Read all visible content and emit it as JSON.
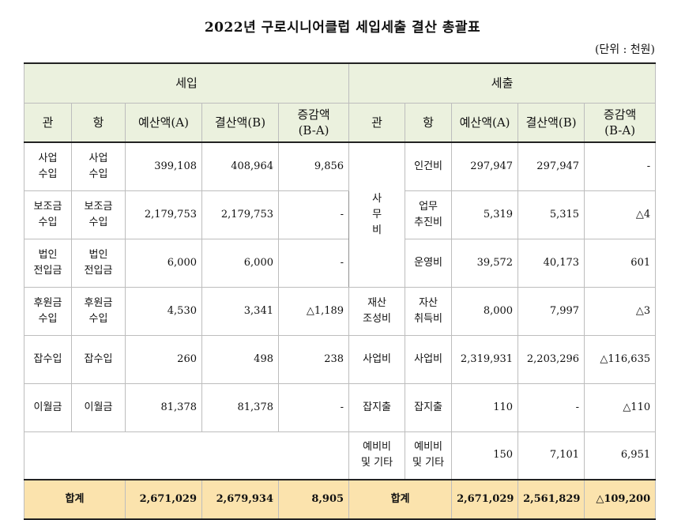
{
  "title": "2022년 구로시니어클럽 세입세출 결산 총괄표",
  "unit": "(단위 : 천원)",
  "header": {
    "income": "세입",
    "expense": "세출",
    "cols": {
      "gwan": "관",
      "hang": "항",
      "budget": "예산액(A)",
      "settled": "결산액(B)",
      "diff_l1": "증감액",
      "diff_l2": "(B-A)"
    }
  },
  "income_rows": [
    {
      "gwan": [
        "사업",
        "수입"
      ],
      "hang": [
        "사업",
        "수입"
      ],
      "budget": "399,108",
      "settled": "408,964",
      "diff": "9,856"
    },
    {
      "gwan": [
        "보조금",
        "수입"
      ],
      "hang": [
        "보조금",
        "수입"
      ],
      "budget": "2,179,753",
      "settled": "2,179,753",
      "diff": "-"
    },
    {
      "gwan": [
        "법인",
        "전입금"
      ],
      "hang": [
        "법인",
        "전입금"
      ],
      "budget": "6,000",
      "settled": "6,000",
      "diff": "-"
    },
    {
      "gwan": [
        "후원금",
        "수입"
      ],
      "hang": [
        "후원금",
        "수입"
      ],
      "budget": "4,530",
      "settled": "3,341",
      "diff": "△1,189"
    },
    {
      "gwan": [
        "잡수입"
      ],
      "hang": [
        "잡수입"
      ],
      "budget": "260",
      "settled": "498",
      "diff": "238"
    },
    {
      "gwan": [
        "이월금"
      ],
      "hang": [
        "이월금"
      ],
      "budget": "81,378",
      "settled": "81,378",
      "diff": "-"
    }
  ],
  "expense_rows": [
    {
      "gwan": [
        "사",
        "무",
        "비"
      ],
      "hang": [
        "인건비"
      ],
      "budget": "297,947",
      "settled": "297,947",
      "diff": "-"
    },
    {
      "hang": [
        "업무",
        "추진비"
      ],
      "budget": "5,319",
      "settled": "5,315",
      "diff": "△4"
    },
    {
      "hang": [
        "운영비"
      ],
      "budget": "39,572",
      "settled": "40,173",
      "diff": "601"
    },
    {
      "gwan": [
        "재산",
        "조성비"
      ],
      "hang": [
        "자산",
        "취득비"
      ],
      "budget": "8,000",
      "settled": "7,997",
      "diff": "△3"
    },
    {
      "gwan": [
        "사업비"
      ],
      "hang": [
        "사업비"
      ],
      "budget": "2,319,931",
      "settled": "2,203,296",
      "diff": "△116,635"
    },
    {
      "gwan": [
        "잡지출"
      ],
      "hang": [
        "잡지출"
      ],
      "budget": "110",
      "settled": "-",
      "diff": "△110"
    },
    {
      "gwan": [
        "예비비",
        "및 기타"
      ],
      "hang": [
        "예비비",
        "및 기타"
      ],
      "budget": "150",
      "settled": "7,101",
      "diff": "6,951"
    }
  ],
  "total": {
    "income": {
      "label": "합계",
      "budget": "2,671,029",
      "settled": "2,679,934",
      "diff": "8,905"
    },
    "expense": {
      "label": "합계",
      "budget": "2,671,029",
      "settled": "2,561,829",
      "diff": "△109,200"
    }
  }
}
